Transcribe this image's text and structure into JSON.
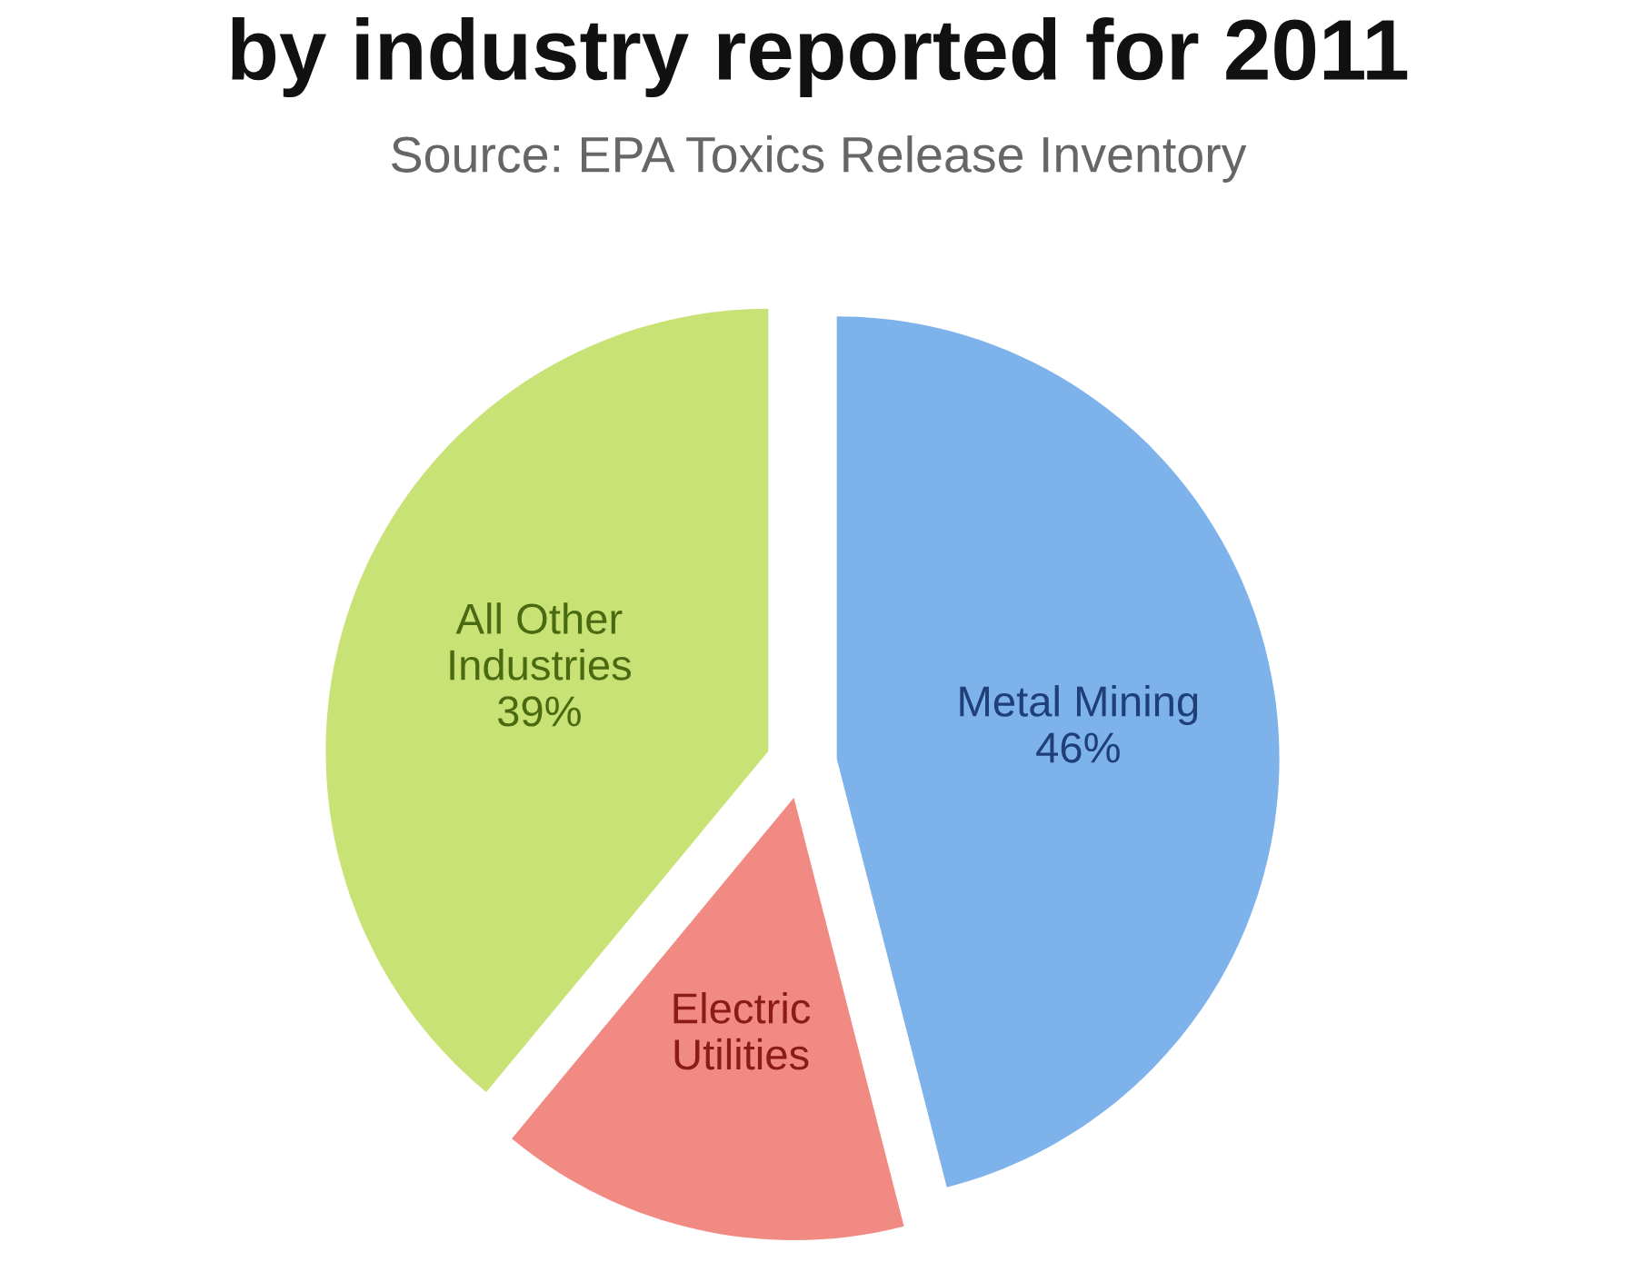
{
  "chart_data": {
    "type": "pie",
    "title": "by industry reported for 2011",
    "subtitle": "Source: EPA Toxics Release Inventory",
    "categories": [
      "Metal Mining",
      "Electric Utilities",
      "All Other Industries"
    ],
    "values": [
      46,
      15,
      39
    ],
    "value_labels": [
      "46%",
      null,
      "39%"
    ],
    "colors": [
      "#7eb2ea",
      "#f28a84",
      "#c8e275"
    ]
  }
}
